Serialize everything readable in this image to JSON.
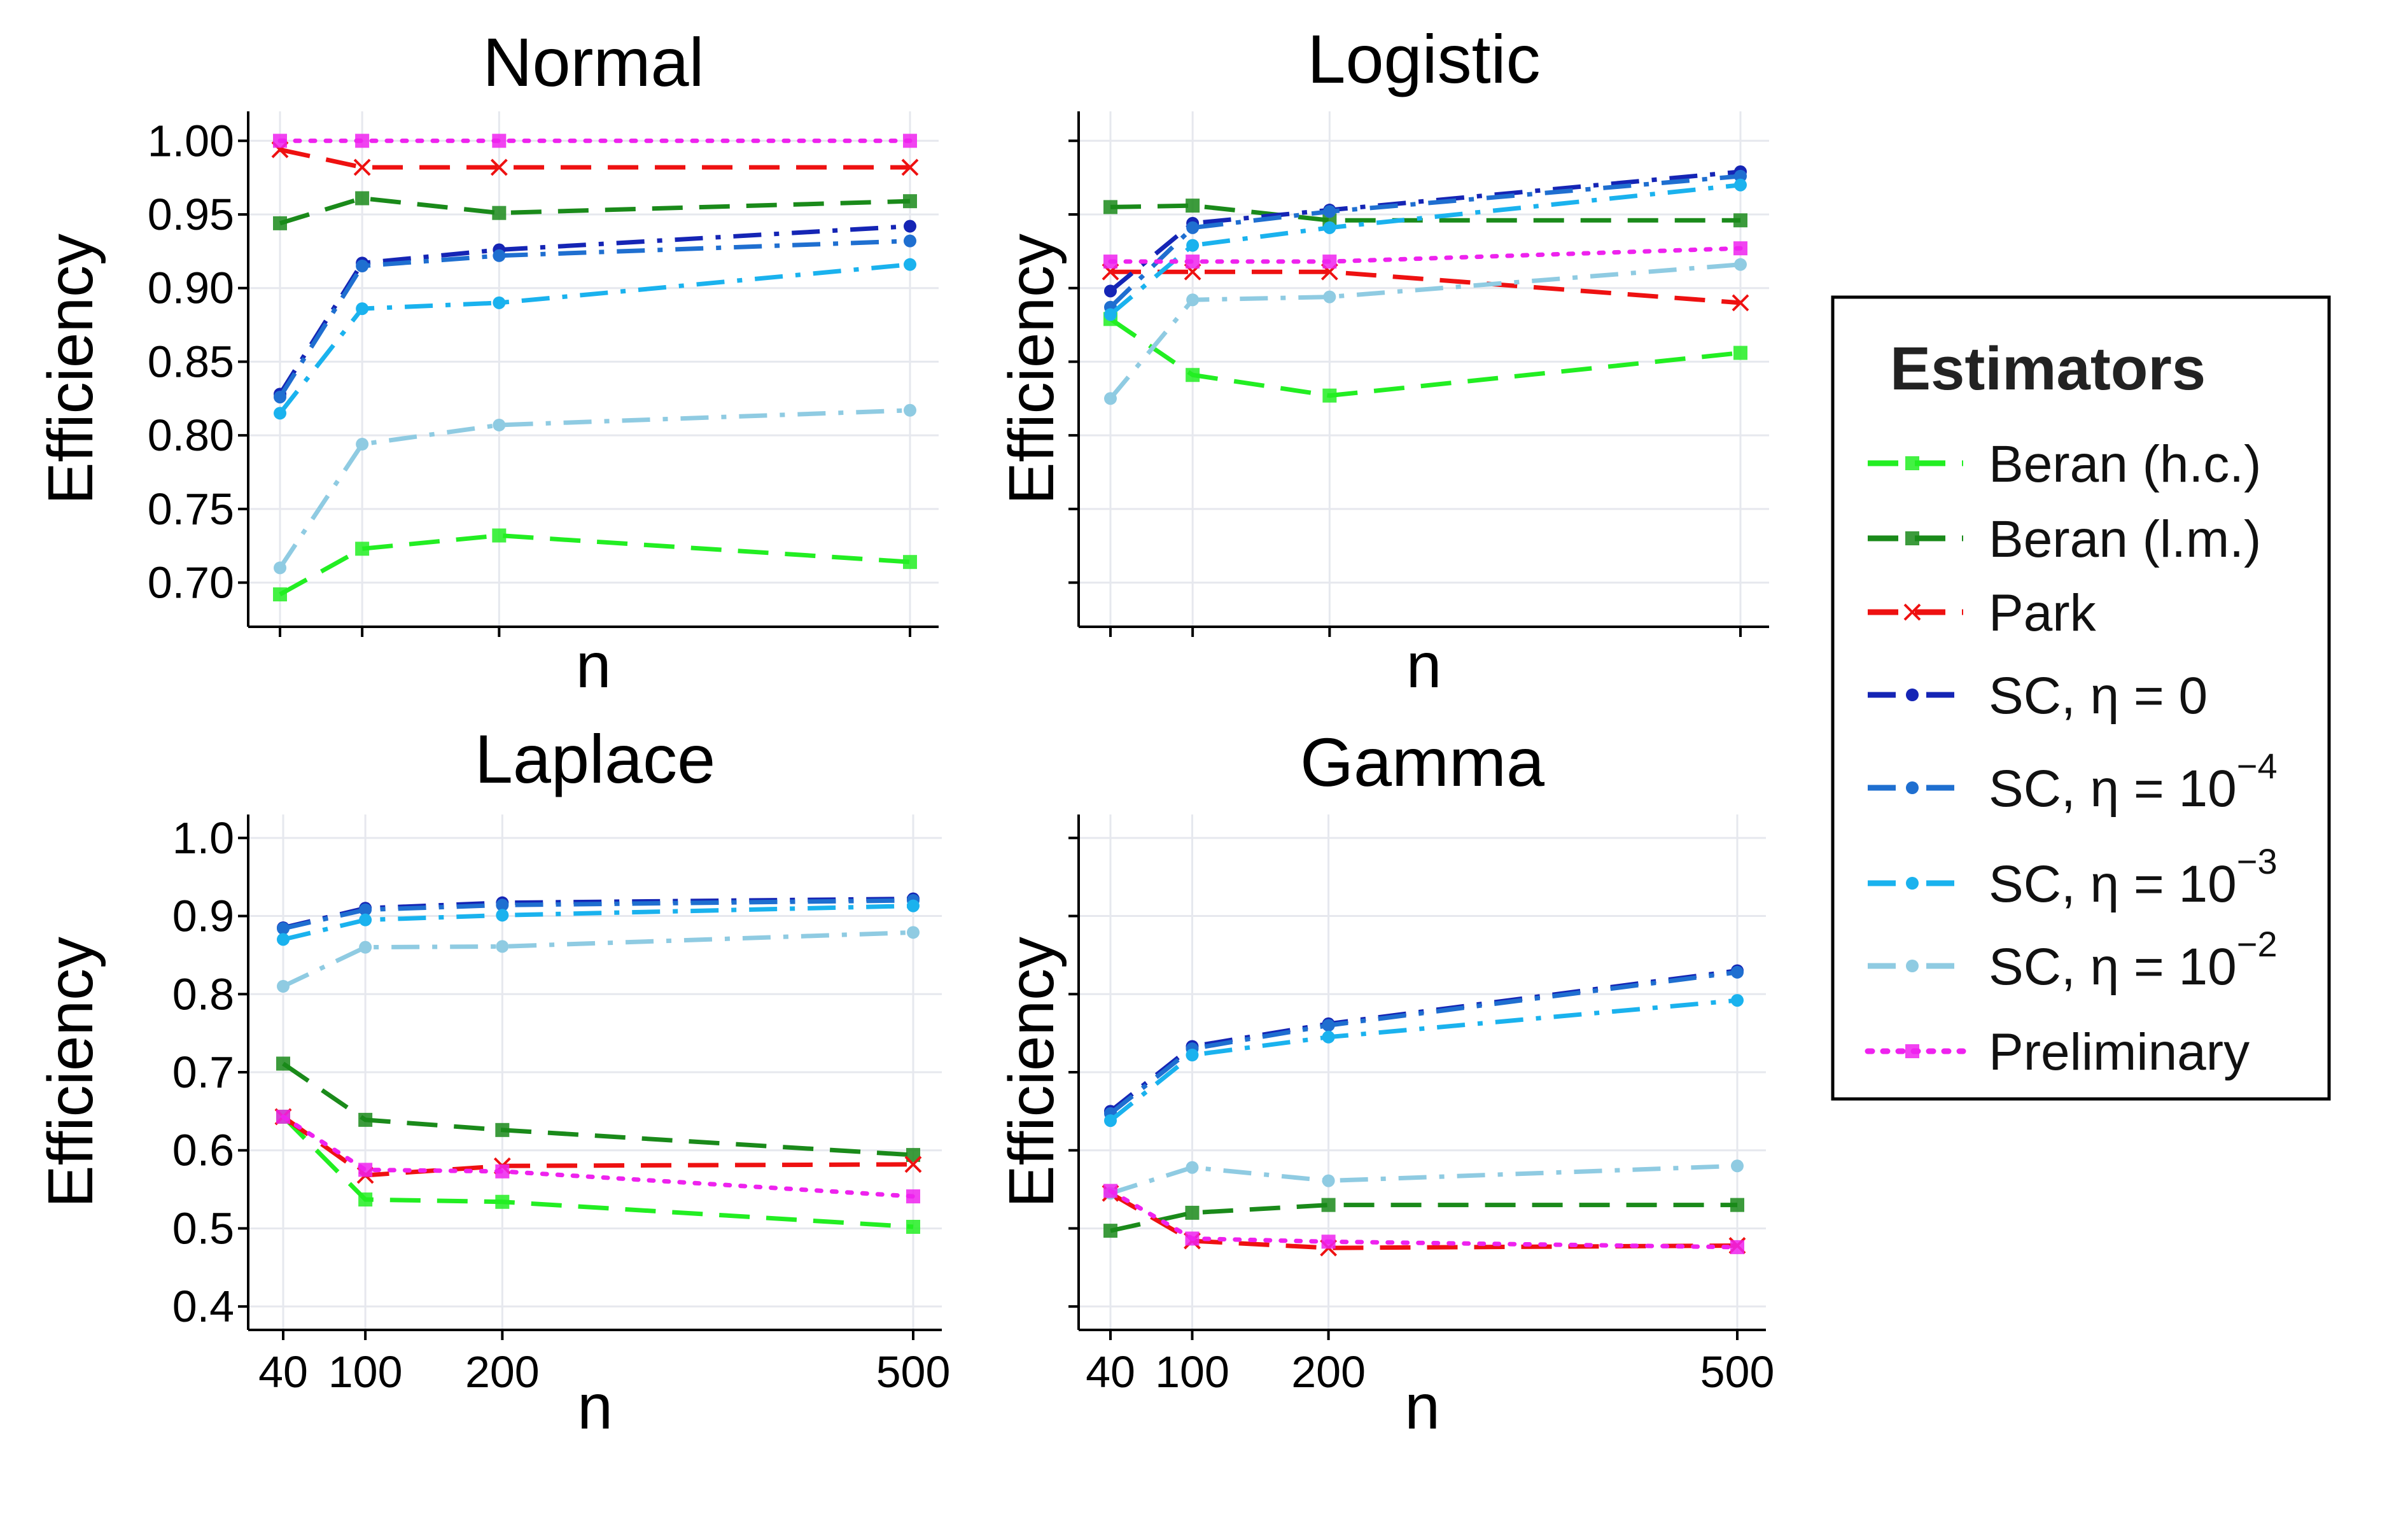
{
  "chart_data": [
    {
      "type": "line",
      "title": "Normal",
      "xlabel": "n",
      "ylabel": "Efficiency",
      "x": [
        40,
        100,
        200,
        500
      ],
      "xlim": [
        40,
        500
      ],
      "ylim": [
        0.67,
        1.02
      ],
      "yticks": [
        0.7,
        0.75,
        0.8,
        0.85,
        0.9,
        0.95,
        1.0
      ],
      "ytick_labels": [
        "0.70",
        "0.75",
        "0.80",
        "0.85",
        "0.90",
        "0.95",
        "1.00"
      ],
      "show_xtick_labels": false,
      "show_ytick_labels": true,
      "series": [
        {
          "name": "Beran (h.c.)",
          "values": [
            0.692,
            0.723,
            0.732,
            0.714
          ]
        },
        {
          "name": "Beran (l.m.)",
          "values": [
            0.944,
            0.961,
            0.951,
            0.959
          ]
        },
        {
          "name": "Park",
          "values": [
            0.994,
            0.982,
            0.982,
            0.982
          ]
        },
        {
          "name": "SC, η = 0",
          "values": [
            0.828,
            0.917,
            0.926,
            0.942
          ]
        },
        {
          "name": "SC, η = 10^-4",
          "values": [
            0.826,
            0.915,
            0.922,
            0.932
          ]
        },
        {
          "name": "SC, η = 10^-3",
          "values": [
            0.815,
            0.886,
            0.89,
            0.916
          ]
        },
        {
          "name": "SC, η = 10^-2",
          "values": [
            0.71,
            0.794,
            0.807,
            0.817
          ]
        },
        {
          "name": "Preliminary",
          "values": [
            1.0,
            1.0,
            1.0,
            1.0
          ]
        }
      ]
    },
    {
      "type": "line",
      "title": "Logistic",
      "xlabel": "n",
      "ylabel": "Efficiency",
      "x": [
        40,
        100,
        200,
        500
      ],
      "xlim": [
        40,
        500
      ],
      "ylim": [
        0.67,
        1.02
      ],
      "yticks": [
        0.7,
        0.75,
        0.8,
        0.85,
        0.9,
        0.95,
        1.0
      ],
      "ytick_labels": [
        "0.70",
        "0.75",
        "0.80",
        "0.85",
        "0.90",
        "0.95",
        "1.00"
      ],
      "show_xtick_labels": false,
      "show_ytick_labels": false,
      "series": [
        {
          "name": "Beran (h.c.)",
          "values": [
            0.879,
            0.841,
            0.827,
            0.856
          ]
        },
        {
          "name": "Beran (l.m.)",
          "values": [
            0.955,
            0.956,
            0.946,
            0.946
          ]
        },
        {
          "name": "Park",
          "values": [
            0.911,
            0.911,
            0.911,
            0.89
          ]
        },
        {
          "name": "SC, η = 0",
          "values": [
            0.898,
            0.944,
            0.953,
            0.979
          ]
        },
        {
          "name": "SC, η = 10^-4",
          "values": [
            0.887,
            0.941,
            0.952,
            0.976
          ]
        },
        {
          "name": "SC, η = 10^-3",
          "values": [
            0.882,
            0.929,
            0.941,
            0.97
          ]
        },
        {
          "name": "SC, η = 10^-2",
          "values": [
            0.825,
            0.892,
            0.894,
            0.916
          ]
        },
        {
          "name": "Preliminary",
          "values": [
            0.918,
            0.918,
            0.918,
            0.927
          ]
        }
      ]
    },
    {
      "type": "line",
      "title": "Laplace",
      "xlabel": "n",
      "ylabel": "Efficiency",
      "x": [
        40,
        100,
        200,
        500
      ],
      "xlim": [
        40,
        500
      ],
      "ylim": [
        0.37,
        1.03
      ],
      "yticks": [
        0.4,
        0.5,
        0.6,
        0.7,
        0.8,
        0.9,
        1.0
      ],
      "ytick_labels": [
        "0.4",
        "0.5",
        "0.6",
        "0.7",
        "0.8",
        "0.9",
        "1.0"
      ],
      "xticks": [
        40,
        100,
        200,
        500
      ],
      "xtick_labels": [
        "40",
        "100",
        "200",
        "500"
      ],
      "show_xtick_labels": true,
      "show_ytick_labels": true,
      "series": [
        {
          "name": "Beran (h.c.)",
          "values": [
            0.643,
            0.537,
            0.534,
            0.502
          ]
        },
        {
          "name": "Beran (l.m.)",
          "values": [
            0.711,
            0.639,
            0.626,
            0.594
          ]
        },
        {
          "name": "Park",
          "values": [
            0.643,
            0.568,
            0.58,
            0.582
          ]
        },
        {
          "name": "SC, η = 0",
          "values": [
            0.885,
            0.91,
            0.917,
            0.922
          ]
        },
        {
          "name": "SC, η = 10^-4",
          "values": [
            0.884,
            0.908,
            0.914,
            0.92
          ]
        },
        {
          "name": "SC, η = 10^-3",
          "values": [
            0.87,
            0.895,
            0.901,
            0.913
          ]
        },
        {
          "name": "SC, η = 10^-2",
          "values": [
            0.81,
            0.86,
            0.861,
            0.879
          ]
        },
        {
          "name": "Preliminary",
          "values": [
            0.643,
            0.575,
            0.573,
            0.541
          ]
        }
      ]
    },
    {
      "type": "line",
      "title": "Gamma",
      "xlabel": "n",
      "ylabel": "Efficiency",
      "x": [
        40,
        100,
        200,
        500
      ],
      "xlim": [
        40,
        500
      ],
      "ylim": [
        0.37,
        1.03
      ],
      "yticks": [
        0.4,
        0.5,
        0.6,
        0.7,
        0.8,
        0.9,
        1.0
      ],
      "ytick_labels": [
        "0.4",
        "0.5",
        "0.6",
        "0.7",
        "0.8",
        "0.9",
        "1.0"
      ],
      "xticks": [
        40,
        100,
        200,
        500
      ],
      "xtick_labels": [
        "40",
        "100",
        "200",
        "500"
      ],
      "show_xtick_labels": true,
      "show_ytick_labels": false,
      "series": [
        {
          "name": "Beran (h.c.)",
          "values": [
            null,
            null,
            null,
            null
          ]
        },
        {
          "name": "Beran (l.m.)",
          "values": [
            0.497,
            0.52,
            0.53,
            0.53
          ]
        },
        {
          "name": "Park",
          "values": [
            0.545,
            0.484,
            0.475,
            0.478
          ]
        },
        {
          "name": "SC, η = 0",
          "values": [
            0.65,
            0.733,
            0.762,
            0.83
          ]
        },
        {
          "name": "SC, η = 10^-4",
          "values": [
            0.647,
            0.73,
            0.76,
            0.828
          ]
        },
        {
          "name": "SC, η = 10^-3",
          "values": [
            0.638,
            0.722,
            0.745,
            0.792
          ]
        },
        {
          "name": "SC, η = 10^-2",
          "values": [
            0.545,
            0.578,
            0.561,
            0.58
          ]
        },
        {
          "name": "Preliminary",
          "values": [
            0.548,
            0.487,
            0.483,
            0.476
          ]
        }
      ]
    }
  ],
  "legend": {
    "title": "Estimators",
    "items": [
      {
        "label": "Beran (h.c.)",
        "sup": ""
      },
      {
        "label": "Beran (l.m.)",
        "sup": ""
      },
      {
        "label": "Park",
        "sup": ""
      },
      {
        "label": "SC, η = 0",
        "sup": ""
      },
      {
        "label": "SC, η = 10",
        "sup": "−4"
      },
      {
        "label": "SC, η = 10",
        "sup": "−3"
      },
      {
        "label": "SC, η = 10",
        "sup": "−2"
      },
      {
        "label": "Preliminary",
        "sup": ""
      }
    ]
  },
  "series_styles": [
    {
      "color": "#22ee22",
      "dash": "dashed",
      "marker": "square"
    },
    {
      "color": "#1a8a1a",
      "dash": "dashed",
      "marker": "square"
    },
    {
      "color": "#ee1111",
      "dash": "dashed",
      "marker": "x"
    },
    {
      "color": "#1525b5",
      "dash": "dashdot",
      "marker": "circle"
    },
    {
      "color": "#1f6fd0",
      "dash": "dashdot",
      "marker": "circle"
    },
    {
      "color": "#1ab2ee",
      "dash": "dashdot",
      "marker": "circle"
    },
    {
      "color": "#8fcbe2",
      "dash": "dashdot",
      "marker": "circle"
    },
    {
      "color": "#ee22ee",
      "dash": "dotted",
      "marker": "square"
    }
  ]
}
